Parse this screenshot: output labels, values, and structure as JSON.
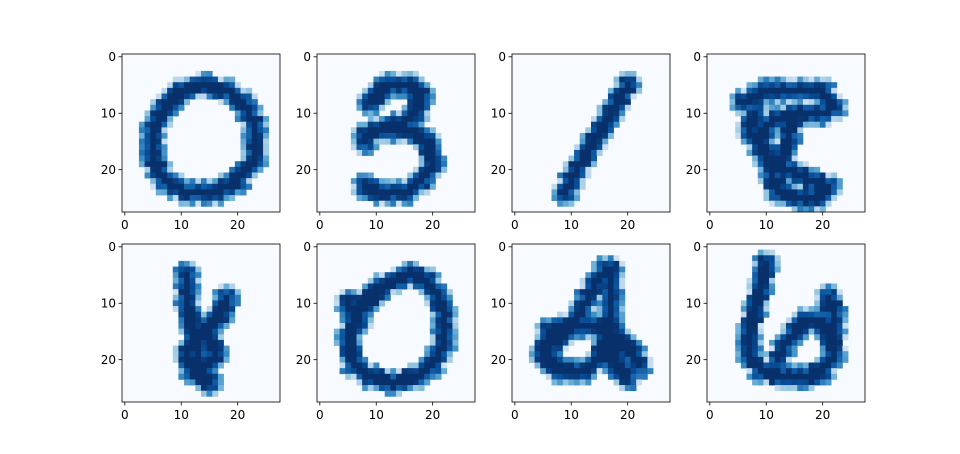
{
  "chart_data": {
    "type": "heatmap",
    "colormap": "Blues",
    "colormap_stops": [
      "#f7fbff",
      "#deebf7",
      "#c6dbef",
      "#9ecae1",
      "#6baed6",
      "#4292c6",
      "#2171b5",
      "#08519c",
      "#08306b"
    ],
    "image_size": 28,
    "layout": {
      "rows": 2,
      "cols": 4
    },
    "x_ticks": [
      0,
      10,
      20
    ],
    "y_ticks": [
      0,
      10,
      20
    ],
    "x_tick_labels": [
      "0",
      "10",
      "20"
    ],
    "y_tick_labels": [
      "0",
      "10",
      "20"
    ],
    "panels": [
      {
        "strokes": [
          [
            [
              14,
              5
            ],
            [
              10,
              6
            ],
            [
              7,
              9
            ],
            [
              5,
              13
            ],
            [
              5,
              18
            ],
            [
              7,
              22
            ],
            [
              11,
              24
            ],
            [
              16,
              24
            ],
            [
              20,
              22
            ],
            [
              23,
              18
            ],
            [
              23,
              12
            ],
            [
              21,
              8
            ],
            [
              18,
              6
            ],
            [
              14,
              5
            ]
          ]
        ]
      },
      {
        "strokes": [
          [
            [
              9,
              8
            ],
            [
              12,
              5
            ],
            [
              16,
              5
            ],
            [
              18,
              7
            ],
            [
              17,
              10
            ],
            [
              14,
              12
            ],
            [
              10,
              13
            ],
            [
              8,
              14
            ],
            [
              8,
              15
            ]
          ],
          [
            [
              12,
              13
            ],
            [
              16,
              13
            ],
            [
              19,
              15
            ],
            [
              20,
              19
            ],
            [
              18,
              22
            ],
            [
              15,
              24
            ],
            [
              11,
              24
            ],
            [
              8,
              23
            ]
          ]
        ]
      },
      {
        "strokes": [
          [
            [
              20,
              5
            ],
            [
              17,
              10
            ],
            [
              14,
              15
            ],
            [
              11,
              20
            ],
            [
              9,
              24
            ]
          ]
        ]
      },
      {
        "strokes": [
          [
            [
              6,
              8
            ],
            [
              10,
              6
            ],
            [
              15,
              6
            ],
            [
              20,
              6
            ],
            [
              22,
              9
            ],
            [
              20,
              10
            ],
            [
              16,
              10
            ],
            [
              12,
              11
            ],
            [
              10,
              12
            ]
          ],
          [
            [
              10,
              12
            ],
            [
              9,
              15
            ],
            [
              10,
              18
            ],
            [
              14,
              20
            ],
            [
              18,
              22
            ],
            [
              21,
              23
            ],
            [
              19,
              25
            ],
            [
              16,
              25
            ],
            [
              12,
              24
            ],
            [
              11,
              21
            ],
            [
              13,
              18
            ],
            [
              14,
              14
            ],
            [
              15,
              10
            ]
          ],
          [
            [
              8,
              10
            ],
            [
              7,
              13
            ],
            [
              9,
              16
            ]
          ]
        ]
      },
      {
        "strokes": [
          [
            [
              11,
              5
            ],
            [
              11,
              10
            ],
            [
              12,
              14
            ],
            [
              13,
              18
            ],
            [
              13,
              22
            ],
            [
              15,
              24
            ]
          ],
          [
            [
              18,
              9
            ],
            [
              17,
              12
            ],
            [
              15,
              14
            ],
            [
              13,
              16
            ],
            [
              11,
              19
            ],
            [
              12,
              22
            ],
            [
              14,
              22
            ],
            [
              16,
              19
            ],
            [
              15,
              16
            ]
          ]
        ]
      },
      {
        "strokes": [
          [
            [
              16,
              5
            ],
            [
              11,
              7
            ],
            [
              7,
              11
            ],
            [
              5,
              16
            ],
            [
              6,
              21
            ],
            [
              9,
              23
            ],
            [
              13,
              24
            ],
            [
              17,
              23
            ],
            [
              20,
              21
            ],
            [
              22,
              17
            ],
            [
              22,
              12
            ],
            [
              21,
              9
            ],
            [
              19,
              6
            ],
            [
              16,
              5
            ]
          ],
          [
            [
              5,
              10
            ],
            [
              7,
              13
            ]
          ]
        ]
      },
      {
        "strokes": [
          [
            [
              16,
              4
            ],
            [
              14,
              7
            ],
            [
              12,
              11
            ],
            [
              10,
              14
            ],
            [
              7,
              17
            ]
          ],
          [
            [
              6,
              15
            ],
            [
              9,
              14
            ],
            [
              14,
              14
            ],
            [
              18,
              16
            ],
            [
              21,
              19
            ],
            [
              22,
              21
            ]
          ],
          [
            [
              6,
              16
            ],
            [
              5,
              19
            ],
            [
              8,
              22
            ],
            [
              12,
              22
            ],
            [
              15,
              20
            ],
            [
              16,
              16
            ],
            [
              17,
              12
            ],
            [
              17,
              8
            ],
            [
              17,
              4
            ]
          ],
          [
            [
              17,
              17
            ],
            [
              18,
              21
            ],
            [
              20,
              23
            ]
          ]
        ]
      },
      {
        "strokes": [
          [
            [
              10,
              3
            ],
            [
              9,
              7
            ],
            [
              8,
              11
            ],
            [
              7,
              15
            ],
            [
              7,
              19
            ],
            [
              9,
              22
            ],
            [
              13,
              23
            ],
            [
              17,
              23
            ],
            [
              20,
              22
            ],
            [
              22,
              19
            ],
            [
              21,
              15
            ],
            [
              19,
              13
            ],
            [
              17,
              13
            ],
            [
              15,
              15
            ],
            [
              13,
              18
            ],
            [
              12,
              20
            ]
          ],
          [
            [
              21,
              9
            ],
            [
              22,
              12
            ],
            [
              22,
              15
            ]
          ]
        ]
      }
    ]
  }
}
